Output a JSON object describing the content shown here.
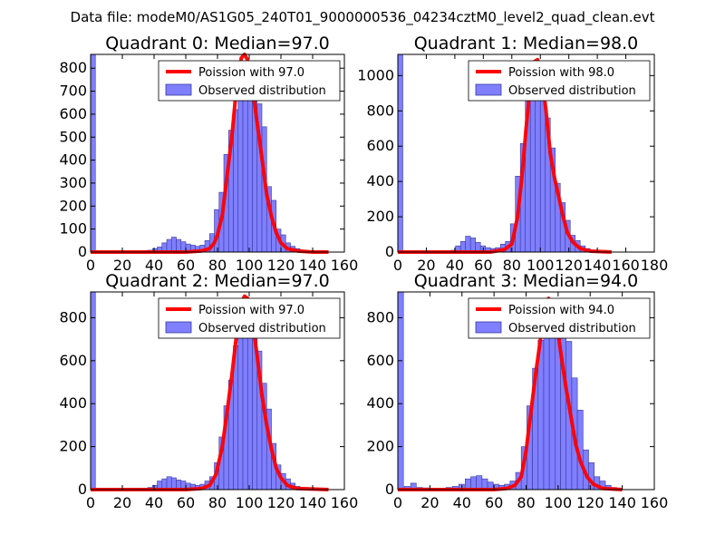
{
  "suptitle": "Data file: modeM0/AS1G05_240T01_9000000536_04234cztM0_level2_quad_clean.evt",
  "colors": {
    "hist_fill": "#7f7fff",
    "hist_edge": "#3a3a9a",
    "poisson_line": "#ff0000"
  },
  "chart_data": [
    {
      "type": "bar",
      "title": "Quadrant 0: Median=97.0",
      "median": 97.0,
      "xlim": [
        0,
        160
      ],
      "ylim": [
        0,
        860
      ],
      "xticks": [
        0,
        20,
        40,
        60,
        80,
        100,
        120,
        140,
        160
      ],
      "yticks": [
        0,
        100,
        200,
        300,
        400,
        500,
        600,
        700,
        800
      ],
      "bin_width": 3,
      "bins": [
        [
          0,
          860
        ],
        [
          33,
          5
        ],
        [
          36,
          8
        ],
        [
          39,
          15
        ],
        [
          42,
          22
        ],
        [
          45,
          40
        ],
        [
          48,
          55
        ],
        [
          51,
          65
        ],
        [
          54,
          55
        ],
        [
          57,
          45
        ],
        [
          60,
          35
        ],
        [
          63,
          30
        ],
        [
          66,
          25
        ],
        [
          69,
          30
        ],
        [
          72,
          50
        ],
        [
          75,
          80
        ],
        [
          78,
          185
        ],
        [
          81,
          260
        ],
        [
          84,
          425
        ],
        [
          87,
          530
        ],
        [
          90,
          620
        ],
        [
          93,
          730
        ],
        [
          96,
          780
        ],
        [
          99,
          760
        ],
        [
          102,
          720
        ],
        [
          105,
          645
        ],
        [
          108,
          545
        ],
        [
          111,
          285
        ],
        [
          114,
          225
        ],
        [
          117,
          100
        ],
        [
          120,
          75
        ],
        [
          123,
          40
        ],
        [
          126,
          25
        ],
        [
          129,
          15
        ],
        [
          132,
          5
        ]
      ],
      "poisson_curve": [
        [
          0,
          0
        ],
        [
          60,
          0
        ],
        [
          70,
          5
        ],
        [
          75,
          15
        ],
        [
          78,
          40
        ],
        [
          80,
          75
        ],
        [
          83,
          160
        ],
        [
          86,
          330
        ],
        [
          89,
          500
        ],
        [
          92,
          720
        ],
        [
          95,
          845
        ],
        [
          97,
          865
        ],
        [
          99,
          835
        ],
        [
          102,
          720
        ],
        [
          105,
          560
        ],
        [
          108,
          410
        ],
        [
          111,
          250
        ],
        [
          114,
          155
        ],
        [
          117,
          85
        ],
        [
          120,
          40
        ],
        [
          124,
          15
        ],
        [
          130,
          5
        ],
        [
          140,
          0
        ],
        [
          150,
          0
        ]
      ],
      "legend": [
        {
          "kind": "line",
          "label": "Poission with 97.0"
        },
        {
          "kind": "patch",
          "label": "Observed distribution"
        }
      ]
    },
    {
      "type": "bar",
      "title": "Quadrant 1: Median=98.0",
      "median": 98.0,
      "xlim": [
        0,
        180
      ],
      "ylim": [
        0,
        1120
      ],
      "xticks": [
        0,
        20,
        40,
        60,
        80,
        100,
        120,
        140,
        160,
        180
      ],
      "yticks": [
        0,
        200,
        400,
        600,
        800,
        1000
      ],
      "bin_width": 3.5,
      "bins": [
        [
          0,
          1120
        ],
        [
          37,
          10
        ],
        [
          40.5,
          35
        ],
        [
          44,
          60
        ],
        [
          47.5,
          90
        ],
        [
          51,
          80
        ],
        [
          54.5,
          55
        ],
        [
          58,
          35
        ],
        [
          61.5,
          25
        ],
        [
          65,
          20
        ],
        [
          68.5,
          25
        ],
        [
          72,
          45
        ],
        [
          75.5,
          60
        ],
        [
          79,
          160
        ],
        [
          82.5,
          430
        ],
        [
          86,
          615
        ],
        [
          89.5,
          915
        ],
        [
          93,
          1055
        ],
        [
          96.5,
          1010
        ],
        [
          100,
          900
        ],
        [
          103.5,
          760
        ],
        [
          107,
          590
        ],
        [
          110.5,
          390
        ],
        [
          114,
          280
        ],
        [
          117.5,
          180
        ],
        [
          121,
          95
        ],
        [
          124.5,
          65
        ],
        [
          128,
          35
        ],
        [
          131.5,
          20
        ],
        [
          135,
          10
        ],
        [
          138.5,
          5
        ]
      ],
      "poisson_curve": [
        [
          0,
          0
        ],
        [
          65,
          0
        ],
        [
          75,
          15
        ],
        [
          80,
          45
        ],
        [
          84,
          200
        ],
        [
          87,
          420
        ],
        [
          90,
          700
        ],
        [
          93,
          950
        ],
        [
          96,
          1080
        ],
        [
          98,
          1090
        ],
        [
          101,
          1000
        ],
        [
          104,
          800
        ],
        [
          107,
          560
        ],
        [
          110,
          420
        ],
        [
          113,
          310
        ],
        [
          116,
          200
        ],
        [
          119,
          110
        ],
        [
          123,
          55
        ],
        [
          128,
          20
        ],
        [
          135,
          5
        ],
        [
          150,
          0
        ]
      ],
      "legend": [
        {
          "kind": "line",
          "label": "Poission with 98.0"
        },
        {
          "kind": "patch",
          "label": "Observed distribution"
        }
      ]
    },
    {
      "type": "bar",
      "title": "Quadrant 2: Median=97.0",
      "median": 97.0,
      "xlim": [
        0,
        160
      ],
      "ylim": [
        0,
        920
      ],
      "xticks": [
        0,
        20,
        40,
        60,
        80,
        100,
        120,
        140,
        160
      ],
      "yticks": [
        0,
        200,
        400,
        600,
        800
      ],
      "bin_width": 3,
      "bins": [
        [
          0,
          920
        ],
        [
          36,
          10
        ],
        [
          39,
          20
        ],
        [
          42,
          40
        ],
        [
          45,
          50
        ],
        [
          48,
          60
        ],
        [
          51,
          55
        ],
        [
          54,
          45
        ],
        [
          57,
          40
        ],
        [
          60,
          30
        ],
        [
          63,
          25
        ],
        [
          66,
          20
        ],
        [
          69,
          25
        ],
        [
          72,
          40
        ],
        [
          75,
          60
        ],
        [
          78,
          125
        ],
        [
          81,
          245
        ],
        [
          84,
          390
        ],
        [
          87,
          510
        ],
        [
          90,
          670
        ],
        [
          93,
          750
        ],
        [
          96,
          805
        ],
        [
          99,
          800
        ],
        [
          102,
          745
        ],
        [
          105,
          645
        ],
        [
          108,
          495
        ],
        [
          111,
          375
        ],
        [
          114,
          215
        ],
        [
          117,
          115
        ],
        [
          120,
          75
        ],
        [
          123,
          50
        ],
        [
          126,
          30
        ],
        [
          129,
          15
        ],
        [
          132,
          5
        ]
      ],
      "poisson_curve": [
        [
          0,
          0
        ],
        [
          60,
          0
        ],
        [
          70,
          5
        ],
        [
          75,
          20
        ],
        [
          79,
          70
        ],
        [
          83,
          200
        ],
        [
          86,
          360
        ],
        [
          89,
          530
        ],
        [
          92,
          720
        ],
        [
          95,
          870
        ],
        [
          97,
          900
        ],
        [
          99,
          890
        ],
        [
          102,
          790
        ],
        [
          105,
          620
        ],
        [
          108,
          440
        ],
        [
          111,
          300
        ],
        [
          114,
          190
        ],
        [
          117,
          100
        ],
        [
          120,
          55
        ],
        [
          124,
          20
        ],
        [
          130,
          5
        ],
        [
          150,
          0
        ]
      ],
      "legend": [
        {
          "kind": "line",
          "label": "Poission with 97.0"
        },
        {
          "kind": "patch",
          "label": "Observed distribution"
        }
      ]
    },
    {
      "type": "bar",
      "title": "Quadrant 3: Median=94.0",
      "median": 94.0,
      "xlim": [
        0,
        160
      ],
      "ylim": [
        0,
        920
      ],
      "xticks": [
        0,
        20,
        40,
        60,
        80,
        100,
        120,
        140,
        160
      ],
      "yticks": [
        0,
        200,
        400,
        600,
        800
      ],
      "bin_width": 3.5,
      "bins": [
        [
          0,
          920
        ],
        [
          4,
          15
        ],
        [
          8,
          30
        ],
        [
          12,
          10
        ],
        [
          16,
          8
        ],
        [
          20,
          5
        ],
        [
          30,
          10
        ],
        [
          34,
          15
        ],
        [
          38,
          25
        ],
        [
          42,
          50
        ],
        [
          45.5,
          60
        ],
        [
          49,
          65
        ],
        [
          52.5,
          50
        ],
        [
          56,
          35
        ],
        [
          59.5,
          25
        ],
        [
          63,
          20
        ],
        [
          66.5,
          25
        ],
        [
          70,
          40
        ],
        [
          73.5,
          80
        ],
        [
          77,
          200
        ],
        [
          80.5,
          390
        ],
        [
          84,
          565
        ],
        [
          87.5,
          695
        ],
        [
          91,
          785
        ],
        [
          94.5,
          750
        ],
        [
          98,
          800
        ],
        [
          101.5,
          790
        ],
        [
          105,
          690
        ],
        [
          108.5,
          520
        ],
        [
          112,
          370
        ],
        [
          115.5,
          185
        ],
        [
          119,
          125
        ],
        [
          122.5,
          60
        ],
        [
          126,
          40
        ],
        [
          129.5,
          20
        ],
        [
          133,
          10
        ],
        [
          136.5,
          5
        ]
      ],
      "poisson_curve": [
        [
          0,
          0
        ],
        [
          60,
          0
        ],
        [
          68,
          5
        ],
        [
          73,
          20
        ],
        [
          77,
          60
        ],
        [
          80,
          180
        ],
        [
          83,
          360
        ],
        [
          86,
          540
        ],
        [
          89,
          700
        ],
        [
          92,
          850
        ],
        [
          94,
          890
        ],
        [
          96,
          870
        ],
        [
          99,
          780
        ],
        [
          102,
          620
        ],
        [
          105,
          470
        ],
        [
          108,
          340
        ],
        [
          111,
          210
        ],
        [
          114,
          130
        ],
        [
          118,
          60
        ],
        [
          122,
          25
        ],
        [
          128,
          5
        ],
        [
          140,
          0
        ]
      ],
      "legend": [
        {
          "kind": "line",
          "label": "Poission with 94.0"
        },
        {
          "kind": "patch",
          "label": "Observed distribution"
        }
      ]
    }
  ]
}
